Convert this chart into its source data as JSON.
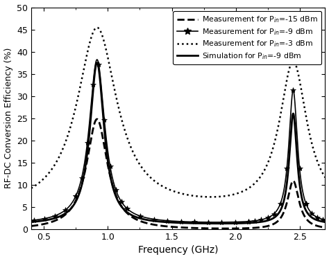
{
  "xlabel": "Frequency (GHz)",
  "ylabel": "RF-DC Conversion Efficiency (%)",
  "xlim": [
    0.4,
    2.7
  ],
  "ylim": [
    0,
    50
  ],
  "xticks": [
    0.5,
    1.0,
    1.5,
    2.0,
    2.5
  ],
  "yticks": [
    0,
    5,
    10,
    15,
    20,
    25,
    30,
    35,
    40,
    45,
    50
  ],
  "peak1": 0.915,
  "peak2": 2.45,
  "legend_entries": [
    "Measurement for P$_{in}$=-15 dBm",
    "Measurement for P$_{in}$=-9 dBm",
    "Measurement for P$_{in}$=-3 dBm",
    "Simulation for P$_{in}$=-9 dBm"
  ],
  "bg_color": "#ffffff",
  "line_color": "#000000",
  "curve1": {
    "peak1_amp": 25.0,
    "peak1_gamma": 0.1,
    "peak2_amp": 11.0,
    "peak2_gamma": 0.055,
    "baseline": -0.2,
    "lw": 2.0,
    "ls": "--"
  },
  "curve2": {
    "peak1_amp": 37.0,
    "peak1_gamma": 0.075,
    "peak2_amp": 30.0,
    "peak2_gamma": 0.042,
    "baseline": 1.2,
    "lw": 1.2,
    "ls": "-"
  },
  "curve3": {
    "peak1_amp": 41.0,
    "peak1_gamma": 0.19,
    "peak2_amp": 33.0,
    "peak2_gamma": 0.13,
    "baseline": 4.2,
    "lw": 1.8,
    "ls": ":"
  },
  "curve4": {
    "peak1_amp": 36.5,
    "peak1_gamma": 0.068,
    "peak2_amp": 25.0,
    "peak2_gamma": 0.038,
    "baseline": 1.0,
    "lw": 2.0,
    "ls": "-"
  }
}
